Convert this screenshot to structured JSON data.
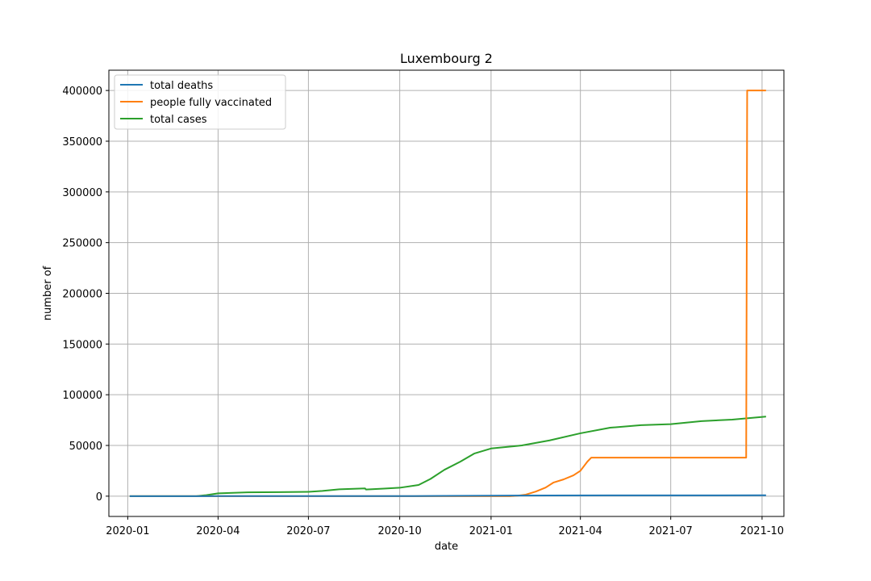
{
  "chart_data": {
    "type": "line",
    "title": "Luxembourg 2",
    "xlabel": "date",
    "ylabel": "number of",
    "x_ticks": [
      "2020-01",
      "2020-04",
      "2020-07",
      "2020-10",
      "2021-01",
      "2021-04",
      "2021-07",
      "2021-10"
    ],
    "y_ticks": [
      0,
      50000,
      100000,
      150000,
      200000,
      250000,
      300000,
      350000,
      400000
    ],
    "xlim": [
      "2019-12-13",
      "2021-10-23"
    ],
    "ylim": [
      -20000,
      420000
    ],
    "grid": true,
    "legend_position": "top-left",
    "series": [
      {
        "name": "total deaths",
        "color": "#1f77b4",
        "points": [
          [
            "2020-01-03",
            0
          ],
          [
            "2020-03-10",
            0
          ],
          [
            "2020-04-01",
            50
          ],
          [
            "2020-06-01",
            110
          ],
          [
            "2020-09-01",
            125
          ],
          [
            "2020-10-15",
            140
          ],
          [
            "2020-11-15",
            260
          ],
          [
            "2021-01-01",
            500
          ],
          [
            "2021-03-01",
            650
          ],
          [
            "2021-05-01",
            790
          ],
          [
            "2021-07-01",
            820
          ],
          [
            "2021-10-05",
            840
          ]
        ]
      },
      {
        "name": "people fully vaccinated",
        "color": "#ff7f0e",
        "points": [
          [
            "2020-01-03",
            0
          ],
          [
            "2021-01-20",
            0
          ],
          [
            "2021-01-28",
            500
          ],
          [
            "2021-02-05",
            1500
          ],
          [
            "2021-02-15",
            4500
          ],
          [
            "2021-02-25",
            8500
          ],
          [
            "2021-03-05",
            13500
          ],
          [
            "2021-03-15",
            16500
          ],
          [
            "2021-03-25",
            20500
          ],
          [
            "2021-04-01",
            25000
          ],
          [
            "2021-04-08",
            34000
          ],
          [
            "2021-04-12",
            38000
          ],
          [
            "2021-09-15",
            38000
          ],
          [
            "2021-09-16",
            400000
          ],
          [
            "2021-10-05",
            400000
          ]
        ]
      },
      {
        "name": "total cases",
        "color": "#2ca02c",
        "points": [
          [
            "2020-01-03",
            0
          ],
          [
            "2020-03-10",
            0
          ],
          [
            "2020-03-20",
            1000
          ],
          [
            "2020-04-01",
            2800
          ],
          [
            "2020-05-01",
            3800
          ],
          [
            "2020-06-01",
            4000
          ],
          [
            "2020-07-01",
            4300
          ],
          [
            "2020-07-15",
            5200
          ],
          [
            "2020-08-01",
            6800
          ],
          [
            "2020-08-27",
            7700
          ],
          [
            "2020-08-28",
            6600
          ],
          [
            "2020-09-15",
            7400
          ],
          [
            "2020-10-01",
            8300
          ],
          [
            "2020-10-20",
            11000
          ],
          [
            "2020-11-01",
            17000
          ],
          [
            "2020-11-15",
            26000
          ],
          [
            "2020-12-01",
            34000
          ],
          [
            "2020-12-15",
            42000
          ],
          [
            "2021-01-01",
            47000
          ],
          [
            "2021-02-01",
            50000
          ],
          [
            "2021-03-01",
            55000
          ],
          [
            "2021-04-01",
            62000
          ],
          [
            "2021-05-01",
            67500
          ],
          [
            "2021-06-01",
            70000
          ],
          [
            "2021-07-01",
            71000
          ],
          [
            "2021-08-01",
            74000
          ],
          [
            "2021-09-01",
            75500
          ],
          [
            "2021-10-05",
            78500
          ]
        ]
      }
    ]
  }
}
